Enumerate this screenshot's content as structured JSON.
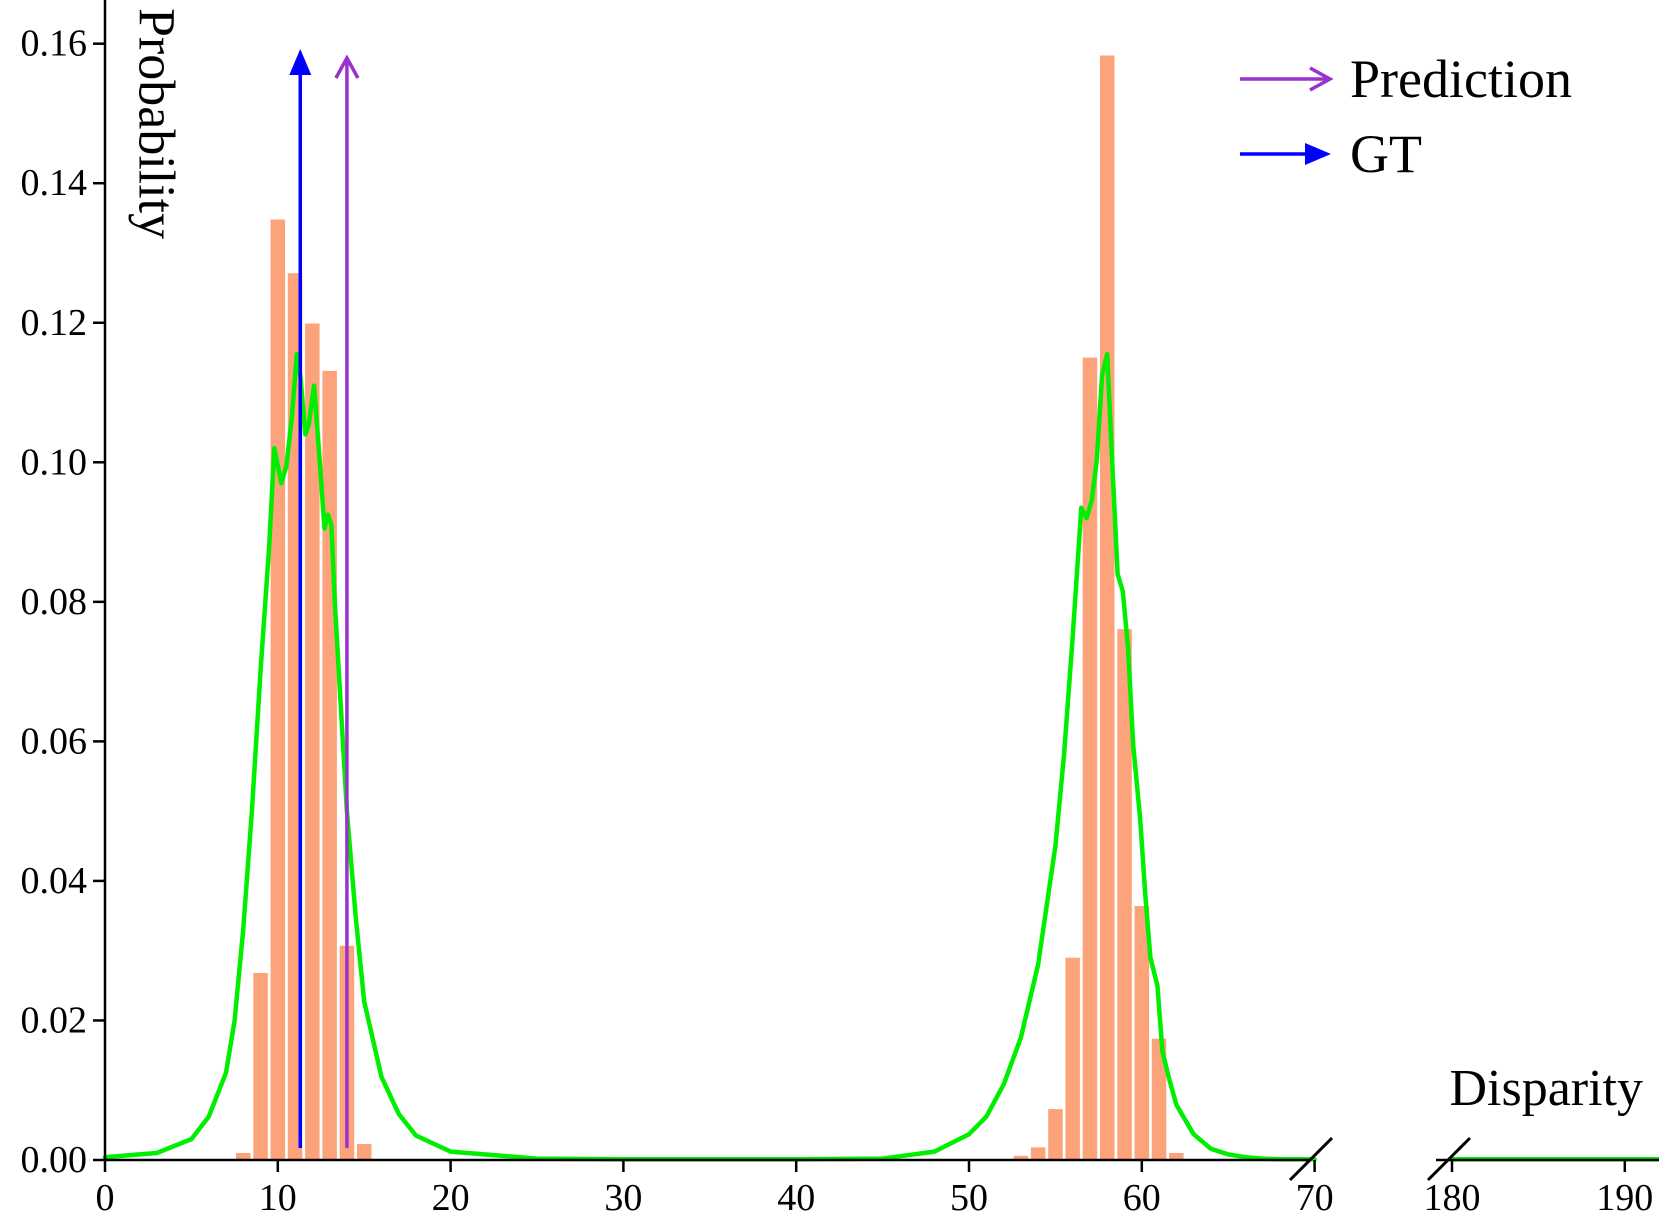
{
  "chart_data": {
    "type": "bar",
    "xlabel": "Disparity",
    "ylabel": "Probability",
    "x_break": [
      70,
      180
    ],
    "xlim_left": [
      0,
      70
    ],
    "xlim_right": [
      180,
      192
    ],
    "ylim": [
      0,
      0.165
    ],
    "grid": false,
    "legend_position": "top-right",
    "x_ticks": [
      "0",
      "10",
      "20",
      "30",
      "40",
      "50",
      "60",
      "70",
      "180",
      "190"
    ],
    "x_tick_values": [
      0,
      10,
      20,
      30,
      40,
      50,
      60,
      70,
      180,
      190
    ],
    "y_ticks": [
      "0.00",
      "0.02",
      "0.04",
      "0.06",
      "0.08",
      "0.10",
      "0.12",
      "0.14",
      "0.16"
    ],
    "y_tick_values": [
      0,
      0.02,
      0.04,
      0.06,
      0.08,
      0.1,
      0.12,
      0.14,
      0.16
    ],
    "bars": {
      "color": "#fca37b",
      "x": [
        8,
        9,
        10,
        11,
        12,
        13,
        14,
        15,
        53,
        54,
        55,
        56,
        57,
        58,
        59,
        60,
        61,
        62
      ],
      "values": [
        0.001,
        0.0268,
        0.1348,
        0.1271,
        0.1199,
        0.1131,
        0.0307,
        0.0023,
        0.0006,
        0.0018,
        0.0073,
        0.029,
        0.115,
        0.1583,
        0.0761,
        0.0364,
        0.0174,
        0.001
      ]
    },
    "curve": {
      "color": "#00ee00",
      "x": [
        0,
        3,
        5,
        6,
        7,
        7.5,
        8,
        8.5,
        9,
        9.5,
        9.8,
        10.2,
        10.5,
        10.8,
        11.1,
        11.3,
        11.6,
        11.8,
        12.1,
        12.4,
        12.7,
        12.9,
        13.1,
        13.3,
        13.6,
        14,
        14.5,
        15,
        16,
        17,
        18,
        20,
        25,
        30,
        35,
        40,
        45,
        48,
        50,
        51,
        52,
        53,
        54,
        55,
        55.5,
        56,
        56.5,
        56.8,
        57.1,
        57.4,
        57.7,
        58,
        58.3,
        58.6,
        58.9,
        59.2,
        59.5,
        59.9,
        60.2,
        60.5,
        60.9,
        61.2,
        61.6,
        62,
        63,
        64,
        65,
        66,
        67,
        68,
        70
      ],
      "y": [
        0.0004,
        0.001,
        0.003,
        0.0062,
        0.0125,
        0.02,
        0.033,
        0.05,
        0.07,
        0.088,
        0.102,
        0.097,
        0.0995,
        0.106,
        0.1155,
        0.1125,
        0.104,
        0.1055,
        0.111,
        0.101,
        0.0905,
        0.0925,
        0.091,
        0.08,
        0.067,
        0.05,
        0.035,
        0.0227,
        0.0119,
        0.0066,
        0.0035,
        0.0012,
        0.0002,
        0.0001,
        0.0001,
        0.0001,
        0.0002,
        0.0012,
        0.0037,
        0.0062,
        0.0108,
        0.0175,
        0.028,
        0.045,
        0.058,
        0.075,
        0.0935,
        0.092,
        0.0945,
        0.1005,
        0.1125,
        0.1155,
        0.0995,
        0.084,
        0.0815,
        0.0735,
        0.0595,
        0.049,
        0.038,
        0.029,
        0.025,
        0.0155,
        0.0115,
        0.0079,
        0.0037,
        0.0016,
        0.0008,
        0.0004,
        0.0002,
        0.0001,
        0.0001
      ]
    },
    "right_curve": {
      "x": [
        180,
        192
      ],
      "y": [
        0.0001,
        0.0001
      ]
    },
    "gt_arrow": {
      "x": 11.3,
      "color": "#0000ff"
    },
    "prediction_arrow": {
      "x": 14,
      "color": "#9932cc"
    },
    "legend": [
      {
        "label": "Prediction",
        "color": "#9932cc"
      },
      {
        "label": "GT",
        "color": "#0000ff"
      }
    ]
  }
}
